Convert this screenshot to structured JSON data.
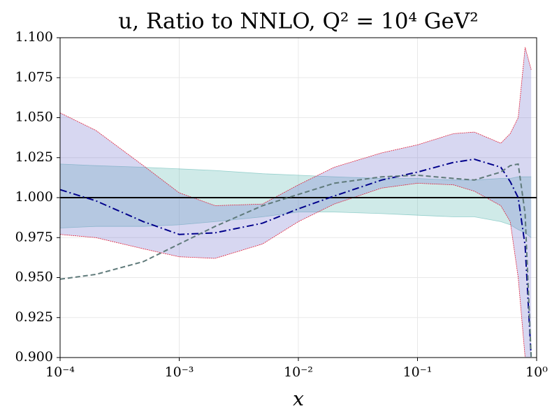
{
  "chart_data": {
    "type": "band_line",
    "title": "u, Ratio to NNLO, Q² = 10⁴ GeV²",
    "xlabel": "x",
    "xscale": "log",
    "grid": true,
    "x": [
      0.0001,
      0.0002,
      0.0005,
      0.001,
      0.002,
      0.005,
      0.01,
      0.02,
      0.05,
      0.1,
      0.2,
      0.3,
      0.5,
      0.6,
      0.7,
      0.8,
      0.9
    ],
    "xlim": [
      0.0001,
      1
    ],
    "xticks": [
      {
        "value": 0.0001,
        "label": "10⁻⁴"
      },
      {
        "value": 0.001,
        "label": "10⁻³"
      },
      {
        "value": 0.01,
        "label": "10⁻²"
      },
      {
        "value": 0.1,
        "label": "10⁻¹"
      },
      {
        "value": 1,
        "label": "10⁰"
      }
    ],
    "ylim": [
      0.9,
      1.1
    ],
    "yticks": [
      {
        "value": 0.9,
        "label": "0.900"
      },
      {
        "value": 0.925,
        "label": "0.925"
      },
      {
        "value": 0.95,
        "label": "0.950"
      },
      {
        "value": 0.975,
        "label": "0.975"
      },
      {
        "value": 1,
        "label": "1.000"
      },
      {
        "value": 1.025,
        "label": "1.025"
      },
      {
        "value": 1.05,
        "label": "1.050"
      },
      {
        "value": 1.075,
        "label": "1.075"
      },
      {
        "value": 1.1,
        "label": "1.100"
      }
    ],
    "reference_line": 1,
    "reference_color": "#000000",
    "bands": [
      {
        "color": "#5fb8b3",
        "edge_color": "#5fb8b3",
        "upper": [
          1.021,
          1.02,
          1.019,
          1.018,
          1.017,
          1.015,
          1.014,
          1.013,
          1.012,
          1.012,
          1.011,
          1.011,
          1.012,
          1.012,
          1.013,
          1.013,
          1.013
        ],
        "lower": [
          0.981,
          0.982,
          0.982,
          0.983,
          0.985,
          0.988,
          0.991,
          0.991,
          0.99,
          0.989,
          0.988,
          0.988,
          0.985,
          0.983,
          0.98,
          0.978,
          0.975
        ]
      },
      {
        "color": "#7b7bd0",
        "edge_color": "#e0203a",
        "upper": [
          1.053,
          1.042,
          1.02,
          1.003,
          0.995,
          0.996,
          1.008,
          1.019,
          1.028,
          1.033,
          1.04,
          1.041,
          1.034,
          1.04,
          1.05,
          1.094,
          1.08
        ],
        "lower": [
          0.977,
          0.975,
          0.968,
          0.963,
          0.962,
          0.971,
          0.985,
          0.996,
          1.006,
          1.009,
          1.008,
          1.004,
          0.995,
          0.985,
          0.95,
          0.9,
          0.9
        ]
      }
    ],
    "series": [
      {
        "color": "#00008b",
        "dash": "dashdot",
        "values": [
          1.005,
          0.998,
          0.985,
          0.977,
          0.978,
          0.984,
          0.993,
          1.001,
          1.011,
          1.016,
          1.022,
          1.024,
          1.019,
          1.01,
          1.0,
          0.97,
          0.9
        ]
      },
      {
        "color": "#5f7a7a",
        "dash": "dashed",
        "values": [
          0.949,
          0.952,
          0.96,
          0.971,
          0.982,
          0.995,
          1.002,
          1.009,
          1.013,
          1.014,
          1.012,
          1.011,
          1.016,
          1.02,
          1.021,
          0.99,
          0.9
        ]
      }
    ]
  }
}
